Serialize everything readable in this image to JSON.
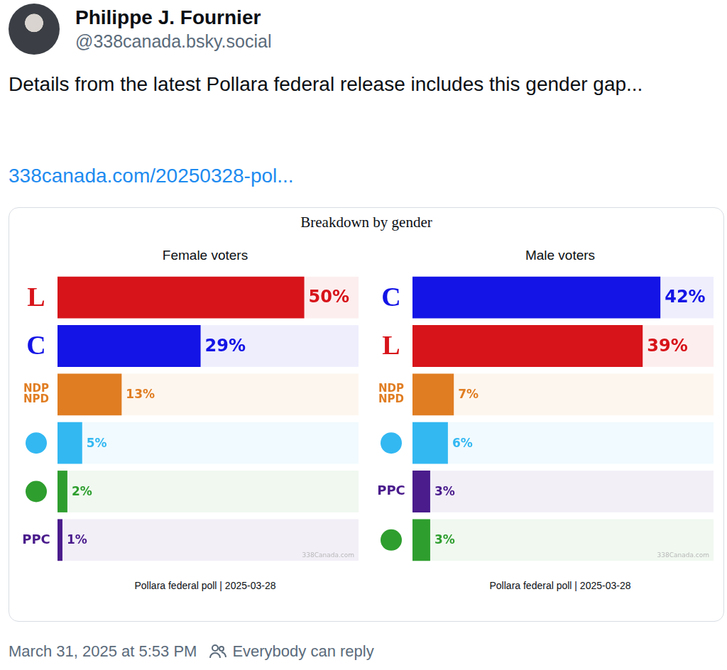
{
  "post": {
    "author": "Philippe J. Fournier",
    "handle": "@338canada.bsky.social",
    "text": "Details from the latest Pollara federal release includes this gender gap...",
    "link": "338canada.com/20250328-pol...",
    "timestamp": "March 31, 2025 at 5:53 PM",
    "reply_setting": "Everybody can reply"
  },
  "figure_title": "Breakdown by gender",
  "chart_data": [
    {
      "type": "bar",
      "orientation": "horizontal",
      "title": "Female voters",
      "categories": [
        "L",
        "C",
        "NDP NPD",
        null,
        null,
        "PPC"
      ],
      "values": [
        50,
        29,
        13,
        5,
        2,
        1
      ],
      "value_labels": [
        "50%",
        "29%",
        "13%",
        "5%",
        "2%",
        "1%"
      ],
      "colors": [
        "#d7141a",
        "#1414e6",
        "#e07d22",
        "#33b8f2",
        "#2e9e2e",
        "#4a1c8c"
      ],
      "xlim": [
        0,
        61
      ],
      "grid": false,
      "data_labels": true,
      "tick_labels": "y",
      "source": "Pollara federal poll | 2025-03-28",
      "watermark": "338Canada.com"
    },
    {
      "type": "bar",
      "orientation": "horizontal",
      "title": "Male voters",
      "categories": [
        "C",
        "L",
        "NDP NPD",
        null,
        "PPC",
        null
      ],
      "values": [
        42,
        39,
        7,
        6,
        3,
        3
      ],
      "value_labels": [
        "42%",
        "39%",
        "7%",
        "6%",
        "3%",
        "3%"
      ],
      "colors": [
        "#1414e6",
        "#d7141a",
        "#e07d22",
        "#33b8f2",
        "#4a1c8c",
        "#2e9e2e"
      ],
      "xlim": [
        0,
        51
      ],
      "grid": false,
      "data_labels": true,
      "tick_labels": "y",
      "source": "Pollara federal poll | 2025-03-28",
      "watermark": "338Canada.com"
    }
  ]
}
